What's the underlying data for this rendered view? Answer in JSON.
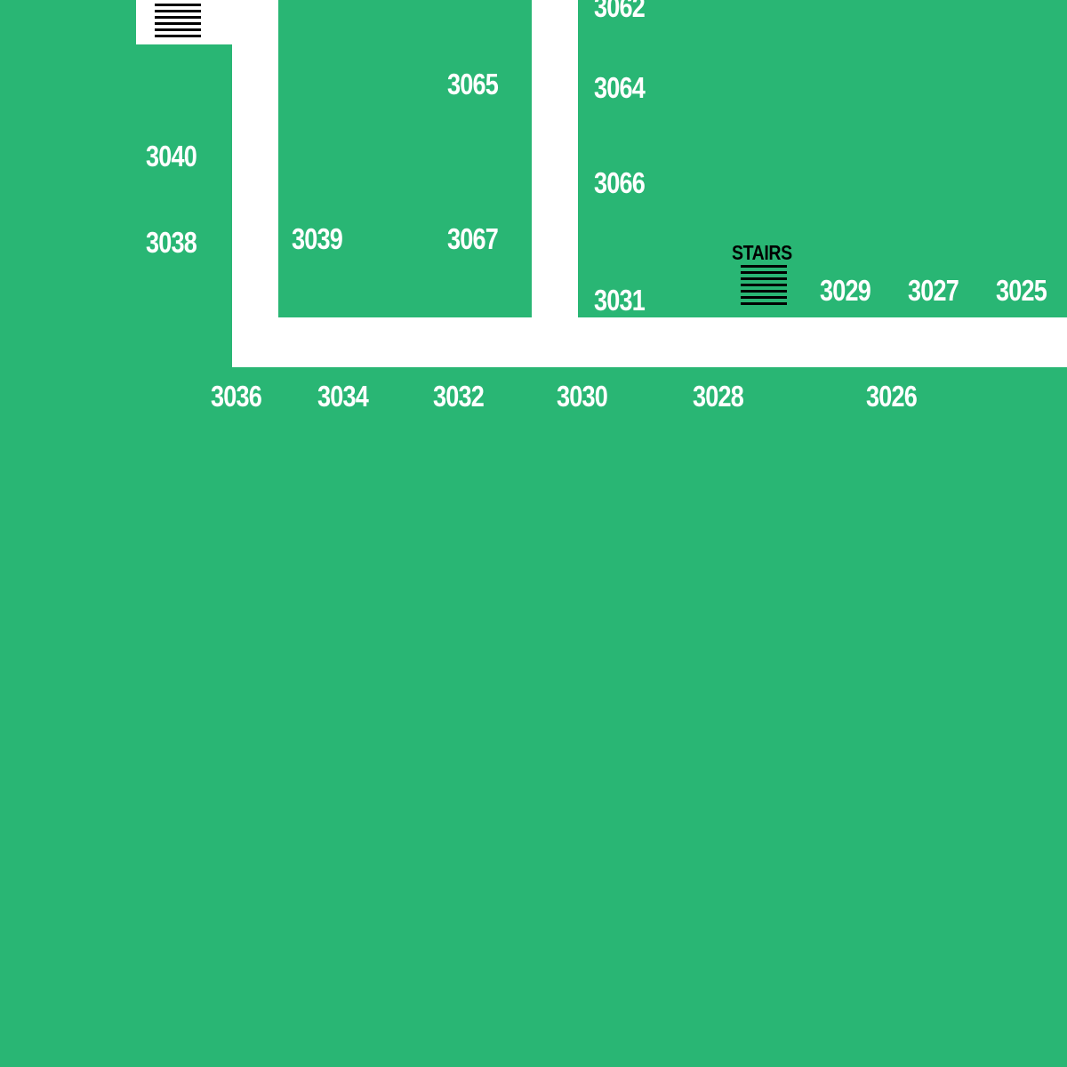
{
  "colors": {
    "floor": "#29b674",
    "corridor": "#ffffff",
    "label": "#ffffff",
    "stairs_text": "#000000",
    "stairs_lines": "#000000"
  },
  "rooms": {
    "r3062": "3062",
    "r3065": "3065",
    "r3064": "3064",
    "r3040": "3040",
    "r3066": "3066",
    "r3038": "3038",
    "r3039": "3039",
    "r3067": "3067",
    "r3031": "3031",
    "r3029": "3029",
    "r3027": "3027",
    "r3025": "3025",
    "r3036": "3036",
    "r3034": "3034",
    "r3032": "3032",
    "r3030": "3030",
    "r3028": "3028",
    "r3026": "3026"
  },
  "stairs": {
    "label": "STAIRS",
    "icon": "stairs-icon"
  }
}
